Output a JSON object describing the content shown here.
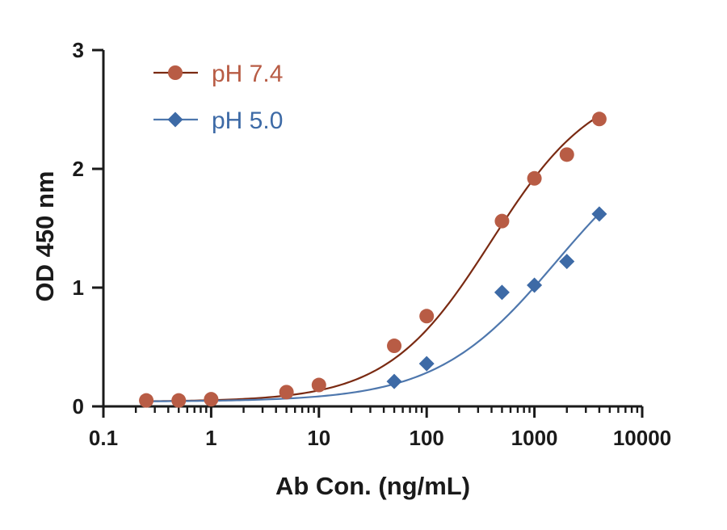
{
  "chart_data": {
    "type": "line",
    "title": "",
    "xlabel": "Ab Con. (ng/mL)",
    "ylabel": "OD 450 nm",
    "x_scale": "log",
    "xlim": [
      0.1,
      10000
    ],
    "ylim": [
      0,
      3
    ],
    "x_ticks": [
      0.1,
      1,
      10,
      100,
      1000,
      10000
    ],
    "x_tick_labels": [
      "0.1",
      "1",
      "10",
      "100",
      "1000",
      "10000"
    ],
    "y_ticks": [
      0,
      1,
      2,
      3
    ],
    "y_tick_labels": [
      "0",
      "1",
      "2",
      "3"
    ],
    "grid": false,
    "legend": "top-left",
    "series": [
      {
        "name": "pH 7.4",
        "color": "#b85c45",
        "line_color": "#7a2a12",
        "marker": "circle",
        "x": [
          0.25,
          0.5,
          1,
          5,
          10,
          50,
          100,
          500,
          1000,
          2000,
          4000
        ],
        "y": [
          0.05,
          0.05,
          0.06,
          0.12,
          0.18,
          0.51,
          0.76,
          1.56,
          1.92,
          2.12,
          2.42
        ],
        "fit": {
          "type": "4PL",
          "bottom": 0.04,
          "top": 2.75,
          "ec50": 400,
          "hill": 0.9
        }
      },
      {
        "name": "pH 5.0",
        "color": "#3d6aa6",
        "line_color": "#4e77ad",
        "marker": "diamond",
        "x": [
          50,
          100,
          500,
          1000,
          2000,
          4000
        ],
        "y": [
          0.21,
          0.36,
          0.96,
          1.02,
          1.22,
          1.62
        ],
        "fit": {
          "type": "4PL",
          "bottom": 0.04,
          "top": 2.4,
          "ec50": 1600,
          "hill": 0.78
        }
      }
    ]
  }
}
